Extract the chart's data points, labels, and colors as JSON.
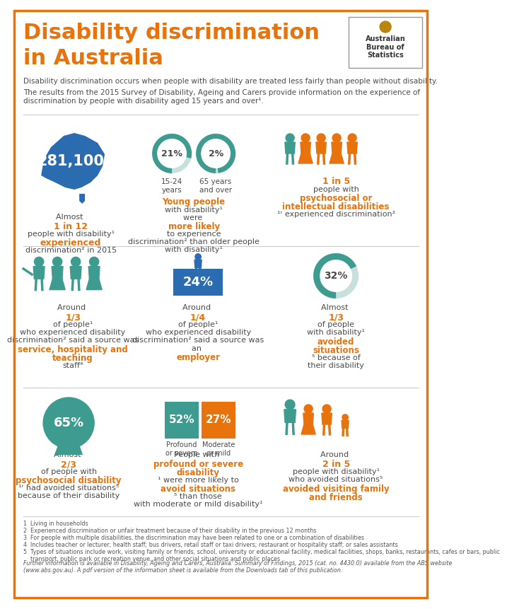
{
  "title_line1": "Disability discrimination",
  "title_line2": "in Australia",
  "orange": "#E8720C",
  "teal": "#3D9B8F",
  "blue_dark": "#1F5C8B",
  "bg_color": "#FFFFFF",
  "subtitle1": "Disability discrimination occurs when people with disability are treated less fairly than people without disability.",
  "subtitle2": "The results from the 2015 Survey of Disability, Ageing and Carers provide information on the experience of\ndiscrimination by people with disability aged 15 years and over¹.",
  "footnotes": [
    "1  Living in households",
    "2  Experienced discrimination or unfair treatment because of their disability in the previous 12 months",
    "3  For people with multiple disabilities, the discrimination may have been related to one or a combination of disabilities",
    "4  Includes teacher or lecturer; health staff; bus drivers, retail staff or taxi drivers; restaurant or hospitality staff; or sales assistants",
    "5  Types of situations include work, visiting family or friends, school, university or educational facility, medical facilities, shops, banks, restaurants, cafes or bars, public\n    transport, public park or recreation venue, and other social situations and public places"
  ],
  "further_info": "Further information is available in Disability, Ageing and Carers, Australia: Summary of Findings, 2015 (cat. no. 4430.0) available from the ABS website\n(www.abs.gov.au). A pdf version of the information sheet is available from the Downloads tab of this publication."
}
